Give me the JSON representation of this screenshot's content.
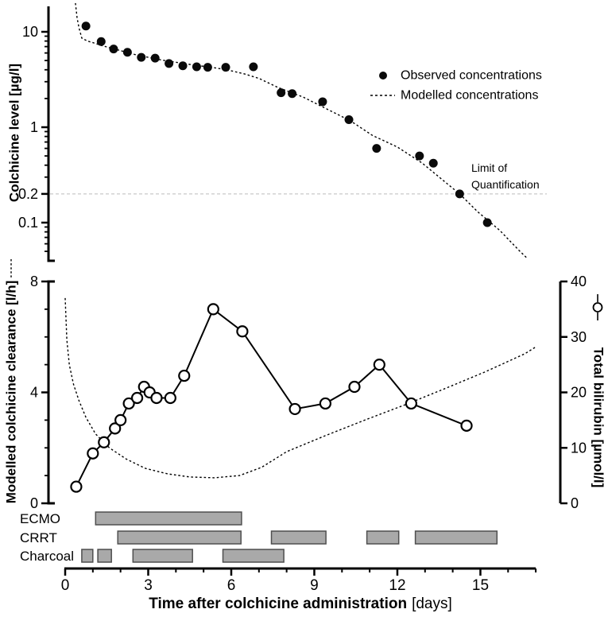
{
  "figure": {
    "background": "#ffffff",
    "text_color": "#000000",
    "bar_fill": "#a9a9a9",
    "bar_border": "#4f4f4f",
    "loq_line_color": "#c9c9c9"
  },
  "chart_data": [
    {
      "id": "colchicine-level",
      "type": "scatter",
      "yscale": "log",
      "ylabel": "Colchicine level [µg/l]",
      "ylim": [
        0.04,
        18
      ],
      "ytick_values": [
        10,
        1,
        0.2,
        0.1
      ],
      "ytick_labels": [
        "10",
        "1",
        "0.2",
        "0.1"
      ],
      "yminor_values": [
        9,
        8,
        7,
        6,
        5,
        4,
        3,
        2,
        0.9,
        0.8,
        0.7,
        0.6,
        0.5,
        0.4,
        0.3,
        0.09,
        0.08,
        0.07,
        0.06,
        0.05
      ],
      "xlim": [
        0,
        17
      ],
      "grid": false,
      "legend_position": "right-middle",
      "legend": [
        {
          "label": "Observed concentrations",
          "marker": "filled-circle"
        },
        {
          "label": "Modelled concentrations",
          "marker": "dotted-line"
        }
      ],
      "loq": {
        "value": 0.2,
        "label_line1": "Limit of",
        "label_line2": "Quantification"
      },
      "series": [
        {
          "name": "Observed concentrations",
          "type": "scatter",
          "marker": "filled-circle",
          "points": [
            [
              0.75,
              11.5
            ],
            [
              1.3,
              7.9
            ],
            [
              1.75,
              6.6
            ],
            [
              2.25,
              6.1
            ],
            [
              2.75,
              5.4
            ],
            [
              3.25,
              5.3
            ],
            [
              3.75,
              4.65
            ],
            [
              4.25,
              4.4
            ],
            [
              4.75,
              4.3
            ],
            [
              5.15,
              4.25
            ],
            [
              5.8,
              4.25
            ],
            [
              6.8,
              4.3
            ],
            [
              7.8,
              2.3
            ],
            [
              8.2,
              2.25
            ],
            [
              9.3,
              1.85
            ],
            [
              10.25,
              1.2
            ],
            [
              11.25,
              0.6
            ],
            [
              12.8,
              0.5
            ],
            [
              13.3,
              0.42
            ],
            [
              14.25,
              0.2
            ],
            [
              15.25,
              0.1
            ]
          ]
        },
        {
          "name": "Modelled concentrations",
          "type": "line",
          "style": "dotted",
          "points": [
            [
              0.37,
              20
            ],
            [
              0.43,
              14
            ],
            [
              0.5,
              11
            ],
            [
              0.6,
              8.6
            ],
            [
              0.8,
              8.0
            ],
            [
              1.0,
              7.7
            ],
            [
              1.3,
              7.2
            ],
            [
              1.7,
              6.7
            ],
            [
              2.0,
              6.35
            ],
            [
              2.5,
              5.8
            ],
            [
              3.0,
              5.4
            ],
            [
              3.5,
              5.05
            ],
            [
              4.0,
              4.8
            ],
            [
              4.5,
              4.55
            ],
            [
              5.0,
              4.35
            ],
            [
              5.5,
              4.15
            ],
            [
              6.0,
              3.9
            ],
            [
              6.5,
              3.6
            ],
            [
              7.0,
              3.25
            ],
            [
              7.7,
              2.6
            ],
            [
              8.6,
              2.07
            ],
            [
              9.4,
              1.58
            ],
            [
              10.3,
              1.17
            ],
            [
              11.1,
              0.82
            ],
            [
              12.0,
              0.62
            ],
            [
              12.9,
              0.42
            ],
            [
              13.7,
              0.27
            ],
            [
              14.25,
              0.2
            ],
            [
              14.9,
              0.13
            ],
            [
              15.7,
              0.083
            ],
            [
              16.4,
              0.051
            ],
            [
              16.7,
              0.042
            ]
          ]
        }
      ]
    },
    {
      "id": "clearance-bilirubin",
      "type": "line",
      "xlabel_main": "Time after colchicine administration",
      "xlabel_unit": "[days]",
      "xlim": [
        0,
        17
      ],
      "xtick_values": [
        0,
        3,
        6,
        9,
        12,
        15
      ],
      "xtick_labels": [
        "0",
        "3",
        "6",
        "9",
        "12",
        "15"
      ],
      "xminor_values": [
        1,
        2,
        4,
        5,
        7,
        8,
        10,
        11,
        13,
        14,
        16,
        17
      ],
      "left_axis": {
        "label": "Modelled colchicine clearance [l/h]",
        "lim": [
          0,
          8
        ],
        "tick_values": [
          0,
          4,
          8
        ],
        "tick_labels": [
          "0",
          "4",
          "8"
        ],
        "minor_values": [
          1,
          2,
          3,
          5,
          6,
          7
        ],
        "series_marker": "dotted-line"
      },
      "right_axis": {
        "label": "Total bilirubin [µmol/l]",
        "lim": [
          0,
          40
        ],
        "tick_values": [
          0,
          10,
          20,
          30,
          40
        ],
        "tick_labels": [
          "0",
          "10",
          "20",
          "30",
          "40"
        ],
        "series_marker": "open-circle"
      },
      "series": [
        {
          "name": "Total bilirubin",
          "axis": "right",
          "type": "line",
          "marker": "open-circle",
          "points": [
            [
              0.4,
              3
            ],
            [
              1.0,
              9
            ],
            [
              1.4,
              11
            ],
            [
              1.8,
              13.5
            ],
            [
              2.0,
              15
            ],
            [
              2.3,
              18
            ],
            [
              2.6,
              19
            ],
            [
              2.85,
              21
            ],
            [
              3.05,
              20
            ],
            [
              3.3,
              19
            ],
            [
              3.8,
              19
            ],
            [
              4.3,
              23
            ],
            [
              5.35,
              35
            ],
            [
              6.4,
              31
            ],
            [
              8.3,
              17
            ],
            [
              9.4,
              18
            ],
            [
              10.45,
              21
            ],
            [
              11.35,
              25
            ],
            [
              12.5,
              18
            ],
            [
              14.5,
              14
            ]
          ]
        },
        {
          "name": "Modelled colchicine clearance",
          "axis": "left",
          "type": "line",
          "style": "dotted",
          "points": [
            [
              0.0,
              7.4
            ],
            [
              0.06,
              5.9
            ],
            [
              0.15,
              5.0
            ],
            [
              0.3,
              4.3
            ],
            [
              0.5,
              3.7
            ],
            [
              0.75,
              3.1
            ],
            [
              1.1,
              2.5
            ],
            [
              1.6,
              2.0
            ],
            [
              2.2,
              1.6
            ],
            [
              2.9,
              1.26
            ],
            [
              3.7,
              1.06
            ],
            [
              4.5,
              0.95
            ],
            [
              5.4,
              0.92
            ],
            [
              6.3,
              1.0
            ],
            [
              7.1,
              1.3
            ],
            [
              8.0,
              1.86
            ],
            [
              9.4,
              2.44
            ],
            [
              10.85,
              3.01
            ],
            [
              12.3,
              3.56
            ],
            [
              13.7,
              4.13
            ],
            [
              15.15,
              4.73
            ],
            [
              16.6,
              5.39
            ],
            [
              16.97,
              5.62
            ]
          ]
        }
      ]
    },
    {
      "id": "interventions",
      "type": "gantt",
      "rows": [
        {
          "label": "ECMO",
          "intervals": [
            [
              1.1,
              6.37
            ]
          ]
        },
        {
          "label": "CRRT",
          "intervals": [
            [
              1.9,
              6.35
            ],
            [
              7.45,
              9.42
            ],
            [
              10.9,
              12.05
            ],
            [
              12.65,
              15.6
            ]
          ]
        },
        {
          "label": "Charcoal",
          "intervals": [
            [
              0.6,
              1.0
            ],
            [
              1.18,
              1.67
            ],
            [
              2.45,
              4.6
            ],
            [
              5.7,
              7.9
            ]
          ]
        }
      ]
    }
  ]
}
